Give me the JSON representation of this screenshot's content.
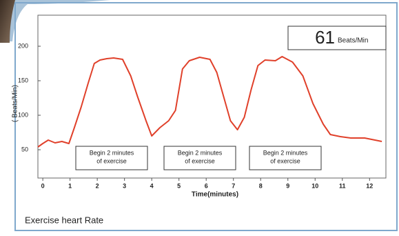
{
  "chart_data": {
    "type": "line",
    "caption": "Exercise heart Rate",
    "y_label": "( Beats/Min)",
    "x_label": "Time(minutes)",
    "readout": {
      "value": 61,
      "unit": "Beats/Min"
    },
    "annotations": [
      [
        "Begin 2 minutes",
        "of exercise"
      ],
      [
        "Begin 2 minutes",
        "of exercise"
      ],
      [
        "Begin 2 minutes",
        "of exercise"
      ]
    ],
    "color": "#e0402a",
    "x": [
      -0.18,
      0,
      0.2,
      0.45,
      0.7,
      0.96,
      1.16,
      1.41,
      1.67,
      1.89,
      2.1,
      2.35,
      2.6,
      2.93,
      3.23,
      3.48,
      3.79,
      4.0,
      4.3,
      4.62,
      4.87,
      5.13,
      5.38,
      5.76,
      6.14,
      6.39,
      6.64,
      6.89,
      7.15,
      7.4,
      7.65,
      7.9,
      8.16,
      8.54,
      8.79,
      9.17,
      9.55,
      9.92,
      10.3,
      10.56,
      10.93,
      11.31,
      11.82,
      12.2,
      12.45
    ],
    "values": [
      54,
      59,
      64,
      60,
      62,
      59,
      82,
      112,
      147,
      175,
      180,
      182,
      183,
      181,
      157,
      127,
      92,
      70,
      82,
      92,
      107,
      167,
      179,
      184,
      181,
      162,
      127,
      92,
      79,
      97,
      137,
      172,
      180,
      179,
      185,
      177,
      157,
      117,
      87,
      72,
      69,
      67,
      67,
      64,
      62
    ],
    "xlim": [
      -0.18,
      12.6
    ],
    "ylim": [
      9,
      245
    ],
    "xticks": [
      0,
      1,
      2,
      3,
      4,
      5,
      6,
      7,
      8,
      9,
      10,
      11,
      12
    ],
    "yticks": [
      50,
      100,
      150,
      200
    ]
  }
}
